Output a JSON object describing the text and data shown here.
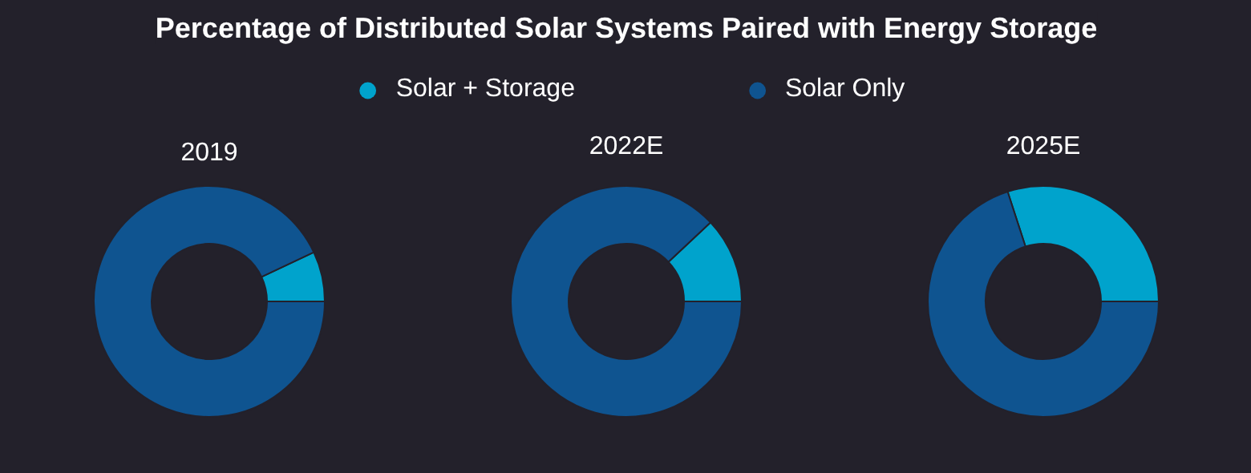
{
  "chart_data": [
    {
      "type": "donut",
      "title": "Percentage of Distributed Solar Systems Paired with Energy Storage",
      "subtitle": "2019",
      "legend": "top",
      "categories": [
        "Solar + Storage",
        "Solar Only"
      ],
      "values": [
        7,
        93
      ],
      "colors": [
        "#00a3cc",
        "#0f5490"
      ]
    },
    {
      "type": "donut",
      "subtitle": "2022E",
      "values": [
        12,
        88
      ],
      "colors": [
        "#00a3cc",
        "#0f5490"
      ]
    },
    {
      "type": "donut",
      "subtitle": "2025E",
      "values": [
        30,
        70
      ],
      "colors": [
        "#00a3cc",
        "#0f5490"
      ]
    }
  ]
}
